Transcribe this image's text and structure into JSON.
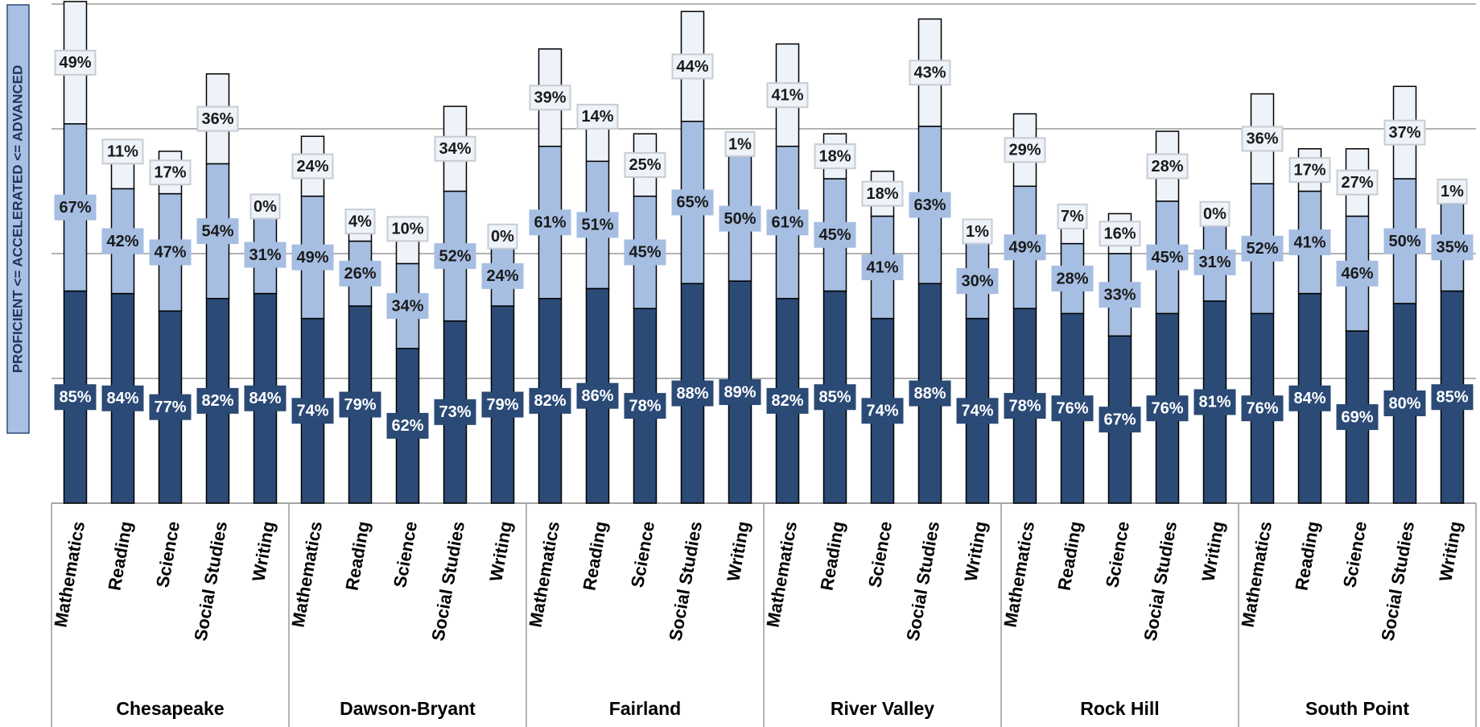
{
  "chart_data": {
    "type": "stacked-bar",
    "y_label": "PROFICIENT <=  ACCELERATED <=  ADVANCED",
    "groups": [
      "Chesapeake",
      "Dawson-Bryant",
      "Fairland",
      "River Valley",
      "Rock Hill",
      "South Point"
    ],
    "categories": [
      "Mathematics",
      "Reading",
      "Science",
      "Social Studies",
      "Writing",
      "Mathematics",
      "Reading",
      "Science",
      "Social Studies",
      "Writing",
      "Mathematics",
      "Reading",
      "Science",
      "Social Studies",
      "Writing",
      "Mathematics",
      "Reading",
      "Science",
      "Social Studies",
      "Writing",
      "Mathematics",
      "Reading",
      "Science",
      "Social Studies",
      "Writing",
      "Mathematics",
      "Reading",
      "Science",
      "Social Studies",
      "Writing"
    ],
    "series": [
      {
        "color": "#2b4a76",
        "values": [
          85,
          84,
          77,
          82,
          84,
          74,
          79,
          62,
          73,
          79,
          82,
          86,
          78,
          88,
          89,
          82,
          85,
          74,
          88,
          74,
          78,
          76,
          67,
          76,
          81,
          76,
          84,
          69,
          80,
          85
        ],
        "value_labels": [
          "85%",
          "84%",
          "77%",
          "82%",
          "84%",
          "74%",
          "79%",
          "62%",
          "73%",
          "79%",
          "82%",
          "86%",
          "78%",
          "88%",
          "89%",
          "82%",
          "85%",
          "74%",
          "88%",
          "74%",
          "78%",
          "76%",
          "67%",
          "76%",
          "81%",
          "76%",
          "84%",
          "69%",
          "80%",
          "85%"
        ]
      },
      {
        "color": "#a6bee2",
        "values": [
          67,
          42,
          47,
          54,
          31,
          49,
          26,
          34,
          52,
          24,
          61,
          51,
          45,
          65,
          50,
          61,
          45,
          41,
          63,
          30,
          49,
          28,
          33,
          45,
          31,
          52,
          41,
          46,
          50,
          35
        ],
        "value_labels": [
          "67%",
          "42%",
          "47%",
          "54%",
          "31%",
          "49%",
          "26%",
          "34%",
          "52%",
          "24%",
          "61%",
          "51%",
          "45%",
          "65%",
          "50%",
          "61%",
          "45%",
          "41%",
          "63%",
          "30%",
          "49%",
          "28%",
          "33%",
          "45%",
          "31%",
          "52%",
          "41%",
          "46%",
          "50%",
          "35%"
        ]
      },
      {
        "color": "#eef3fa",
        "values": [
          49,
          11,
          17,
          36,
          0,
          24,
          4,
          10,
          34,
          0,
          39,
          14,
          25,
          44,
          1,
          41,
          18,
          18,
          43,
          1,
          29,
          7,
          16,
          28,
          0,
          36,
          17,
          27,
          37,
          1
        ],
        "value_labels": [
          "49%",
          "11%",
          "17%",
          "36%",
          "0%",
          "24%",
          "4%",
          "10%",
          "34%",
          "0%",
          "39%",
          "14%",
          "25%",
          "44%",
          "1%",
          "41%",
          "18%",
          "18%",
          "43%",
          "1%",
          "29%",
          "7%",
          "16%",
          "28%",
          "0%",
          "36%",
          "17%",
          "27%",
          "37%",
          "1%"
        ]
      }
    ],
    "ylim": [
      0,
      200
    ],
    "yticks": [
      50,
      100,
      150,
      200
    ],
    "grid": true
  }
}
